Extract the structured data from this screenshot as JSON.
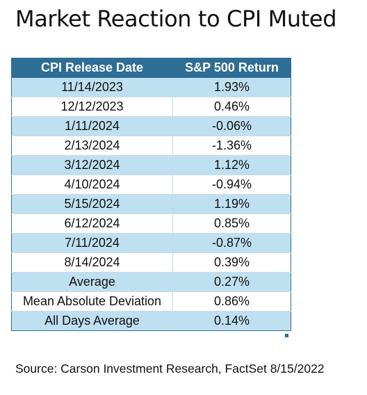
{
  "title": "Market Reaction to CPI Muted",
  "chart_data": {
    "type": "table",
    "columns": [
      "CPI Release Date",
      "S&P 500 Return"
    ],
    "rows": [
      [
        "11/14/2023",
        "1.93%"
      ],
      [
        "12/12/2023",
        "0.46%"
      ],
      [
        "1/11/2024",
        "-0.06%"
      ],
      [
        "2/13/2024",
        "-1.36%"
      ],
      [
        "3/12/2024",
        "1.12%"
      ],
      [
        "4/10/2024",
        "-0.94%"
      ],
      [
        "5/15/2024",
        "1.19%"
      ],
      [
        "6/12/2024",
        "0.85%"
      ],
      [
        "7/11/2024",
        "-0.87%"
      ],
      [
        "8/14/2024",
        "0.39%"
      ],
      [
        "Average",
        "0.27%"
      ],
      [
        "Mean Absolute Deviation",
        "0.86%"
      ],
      [
        "All Days Average",
        "0.14%"
      ]
    ],
    "colors": {
      "header_bg": "#2e6d95",
      "header_text": "#ffffff",
      "band_bg": "#bfe0f0",
      "plain_bg": "#ffffff"
    }
  },
  "source": "Source: Carson Investment Research, FactSet 8/15/2022"
}
